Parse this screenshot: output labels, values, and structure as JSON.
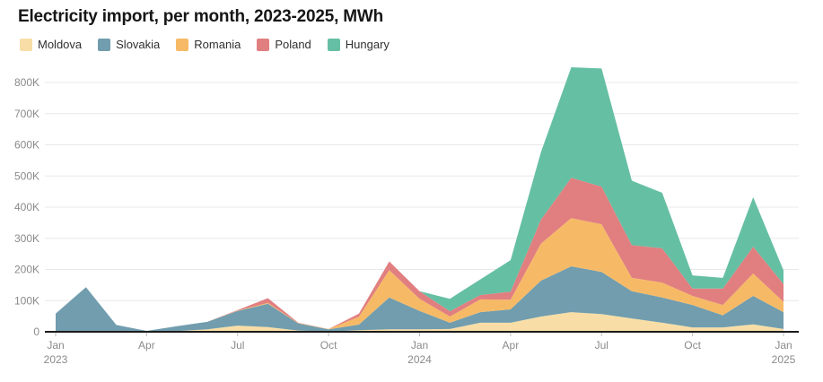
{
  "title": "Electricity import, per month, 2023-2025, MWh",
  "legend": [
    {
      "label": "Moldova",
      "color": "#F8DEA6"
    },
    {
      "label": "Slovakia",
      "color": "#719DAE"
    },
    {
      "label": "Romania",
      "color": "#F6BA67"
    },
    {
      "label": "Poland",
      "color": "#E17F80"
    },
    {
      "label": "Hungary",
      "color": "#65BFA3"
    }
  ],
  "chart_data": {
    "type": "area",
    "stacked": true,
    "title": "Electricity import, per month, 2023-2025, MWh",
    "unit": "MWh",
    "grid": true,
    "legend_position": "top-left",
    "ylim": [
      0,
      860000
    ],
    "yticks": [
      0,
      100000,
      200000,
      300000,
      400000,
      500000,
      600000,
      700000,
      800000
    ],
    "ytick_labels": [
      "0",
      "100K",
      "200K",
      "300K",
      "400K",
      "500K",
      "600K",
      "700K",
      "800K"
    ],
    "x": [
      "Jan 2023",
      "Feb 2023",
      "Mar 2023",
      "Apr 2023",
      "May 2023",
      "Jun 2023",
      "Jul 2023",
      "Aug 2023",
      "Sep 2023",
      "Oct 2023",
      "Nov 2023",
      "Dec 2023",
      "Jan 2024",
      "Feb 2024",
      "Mar 2024",
      "Apr 2024",
      "May 2024",
      "Jun 2024",
      "Jul 2024",
      "Aug 2024",
      "Sep 2024",
      "Oct 2024",
      "Nov 2024",
      "Dec 2024",
      "Jan 2025"
    ],
    "x_ticks": [
      {
        "index": 0,
        "label": "Jan",
        "year": "2023"
      },
      {
        "index": 3,
        "label": "Apr"
      },
      {
        "index": 6,
        "label": "Jul"
      },
      {
        "index": 9,
        "label": "Oct"
      },
      {
        "index": 12,
        "label": "Jan",
        "year": "2024"
      },
      {
        "index": 15,
        "label": "Apr"
      },
      {
        "index": 18,
        "label": "Jul"
      },
      {
        "index": 21,
        "label": "Oct"
      },
      {
        "index": 24,
        "label": "Jan",
        "year": "2025"
      }
    ],
    "series": [
      {
        "name": "Moldova",
        "color": "#F8DEA6",
        "values": [
          1000,
          2000,
          1000,
          1000,
          2000,
          8000,
          20000,
          15000,
          4000,
          1000,
          5000,
          8000,
          8000,
          9000,
          29000,
          29000,
          49000,
          63000,
          57000,
          43000,
          29000,
          14000,
          14000,
          24000,
          9000
        ]
      },
      {
        "name": "Slovakia",
        "color": "#719DAE",
        "values": [
          57000,
          141000,
          21000,
          2000,
          16000,
          24000,
          47000,
          75000,
          23000,
          7000,
          18000,
          102000,
          59000,
          20000,
          34000,
          43000,
          115000,
          147000,
          135000,
          87000,
          81000,
          72000,
          39000,
          91000,
          54000
        ]
      },
      {
        "name": "Romania",
        "color": "#F6BA67",
        "values": [
          0,
          0,
          0,
          0,
          0,
          0,
          1000,
          3000,
          1000,
          1000,
          25000,
          88000,
          39000,
          20000,
          41000,
          31000,
          119000,
          155000,
          153000,
          43000,
          48000,
          29000,
          33000,
          72000,
          33000
        ]
      },
      {
        "name": "Poland",
        "color": "#E17F80",
        "values": [
          0,
          0,
          0,
          0,
          0,
          0,
          2000,
          15000,
          1000,
          0,
          10000,
          28000,
          24000,
          17000,
          14000,
          26000,
          77000,
          129000,
          121000,
          105000,
          110000,
          24000,
          53000,
          86000,
          57000
        ]
      },
      {
        "name": "Hungary",
        "color": "#65BFA3",
        "values": [
          0,
          0,
          0,
          0,
          0,
          0,
          0,
          0,
          0,
          0,
          0,
          0,
          0,
          40000,
          50000,
          101000,
          216000,
          355000,
          379000,
          207000,
          178000,
          42000,
          34000,
          159000,
          44000
        ]
      }
    ]
  }
}
